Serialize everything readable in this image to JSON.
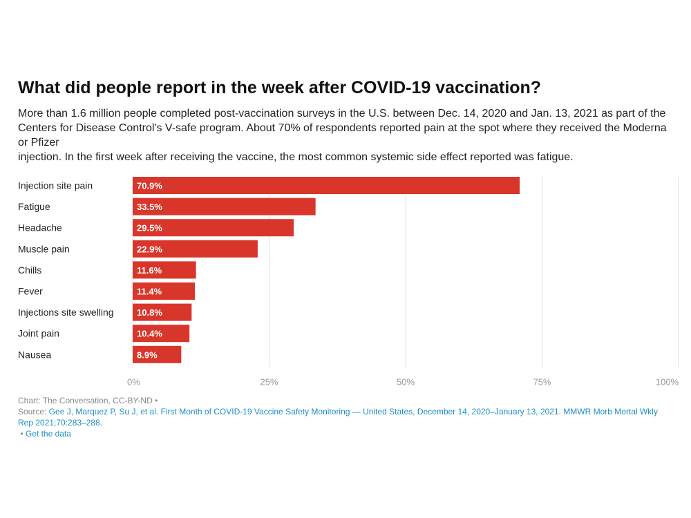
{
  "chart_data": {
    "type": "bar",
    "orientation": "horizontal",
    "title": "What did people report in the week after COVID-19 vaccination?",
    "subtitle_lines": [
      "More than 1.6 million people completed post-vaccination surveys in the U.S. between Dec. 14, 2020 and Jan. 13, 2021 as part of the Centers for Disease Control's V-safe program. About 70% of respondents reported pain at the spot where they received the Moderna or Pfizer",
      "injection. In the first week after receiving the vaccine, the most common systemic side effect reported was fatigue."
    ],
    "categories": [
      "Injection site pain",
      "Fatigue",
      "Headache",
      "Muscle pain",
      "Chills",
      "Fever",
      "Injections site swelling",
      "Joint pain",
      "Nausea"
    ],
    "values": [
      70.9,
      33.5,
      29.5,
      22.9,
      11.6,
      11.4,
      10.8,
      10.4,
      8.9
    ],
    "data_labels": [
      "70.9%",
      "33.5%",
      "29.5%",
      "22.9%",
      "11.6%",
      "11.4%",
      "10.8%",
      "10.4%",
      "8.9%"
    ],
    "xlim": [
      0,
      100
    ],
    "x_ticks": [
      0,
      25,
      50,
      75,
      100
    ],
    "x_tick_labels": [
      "0%",
      "25%",
      "50%",
      "75%",
      "100%"
    ],
    "grid": true,
    "bar_color": "#d9362b",
    "label_color": "#ffffff",
    "grid_color": "#e2e2e2",
    "tick_color": "#999999"
  },
  "footer": {
    "credit": "Chart: The Conversation, CC-BY-ND",
    "bullet": "•",
    "source_label": "Source:",
    "source_link": "Gee J, Marquez P, Su J, et al. First Month of COVID-19 Vaccine Safety Monitoring — United States, December 14, 2020–January 13, 2021. MMWR Morb Mortal Wkly Rep 2021;70:283–288.",
    "get_data": "Get the data"
  }
}
